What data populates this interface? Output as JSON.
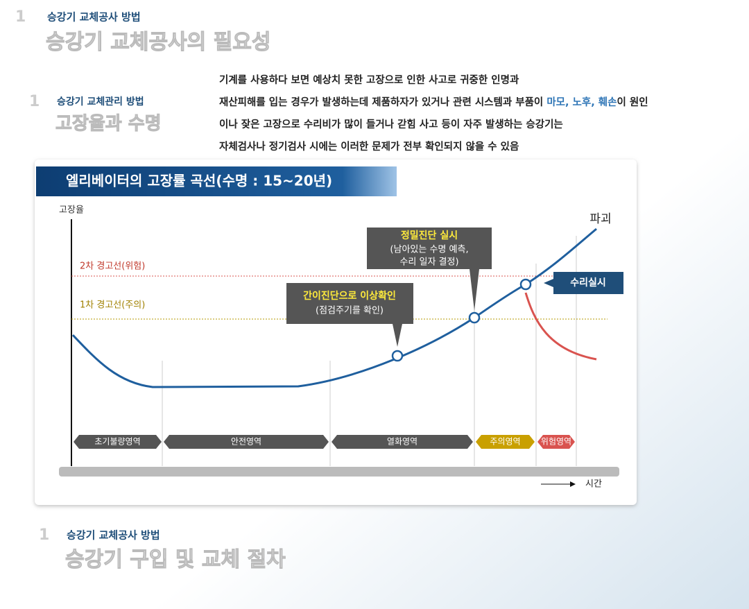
{
  "sections": [
    {
      "number": "1",
      "subtitle": "승강기 교체공사 방법",
      "title": "승강기 교체공사의 필요성"
    },
    {
      "number": "1",
      "subtitle": "승강기 교체공사 방법",
      "title": "승강기 구입 및 교체 절차"
    }
  ],
  "side": {
    "number": "1",
    "subtitle": "승강기 교체관리 방법",
    "title": "고장율과 수명"
  },
  "paragraph": {
    "line1": "기계를 사용하다 보면 예상치 못한 고장으로 인한 사고로 귀중한 인명과",
    "line2_before": "재산피해를 입는 경우가 발생하는데 제품하자가 있거나 관련 시스템과 부품이 ",
    "line2_highlight": "마모, 노후, 훼손",
    "line2_after": "이 원인",
    "line3": "이나 잦은 고장으로 수리비가 많이 들거나 갇힘 사고 등이 자주 발생하는 승강기는",
    "line4": "자체검사나 정기검사 시에는 이러한 문제가 전부 확인되지 않을 수 있음"
  },
  "diagram": {
    "title": "엘리베이터의 고장률 곡선(수명 : 15~20년)",
    "y_label": "고장율",
    "x_label": "시간",
    "end_label": "파괴",
    "warning_lines": [
      "2차 경고선(위험)",
      "1차 경고선(주의)"
    ],
    "callouts": [
      {
        "title": "간이진단으로 이상확인",
        "lines": [
          "(점검주기를 확인)"
        ]
      },
      {
        "title": "정밀진단 실시",
        "lines": [
          "(남아있는 수명 예측,",
          "수리 일자 결정)"
        ]
      }
    ],
    "repair": "수리실시",
    "zones": [
      "초기불량영역",
      "안전영역",
      "열화영역",
      "주의영역",
      "위험영역"
    ]
  }
}
